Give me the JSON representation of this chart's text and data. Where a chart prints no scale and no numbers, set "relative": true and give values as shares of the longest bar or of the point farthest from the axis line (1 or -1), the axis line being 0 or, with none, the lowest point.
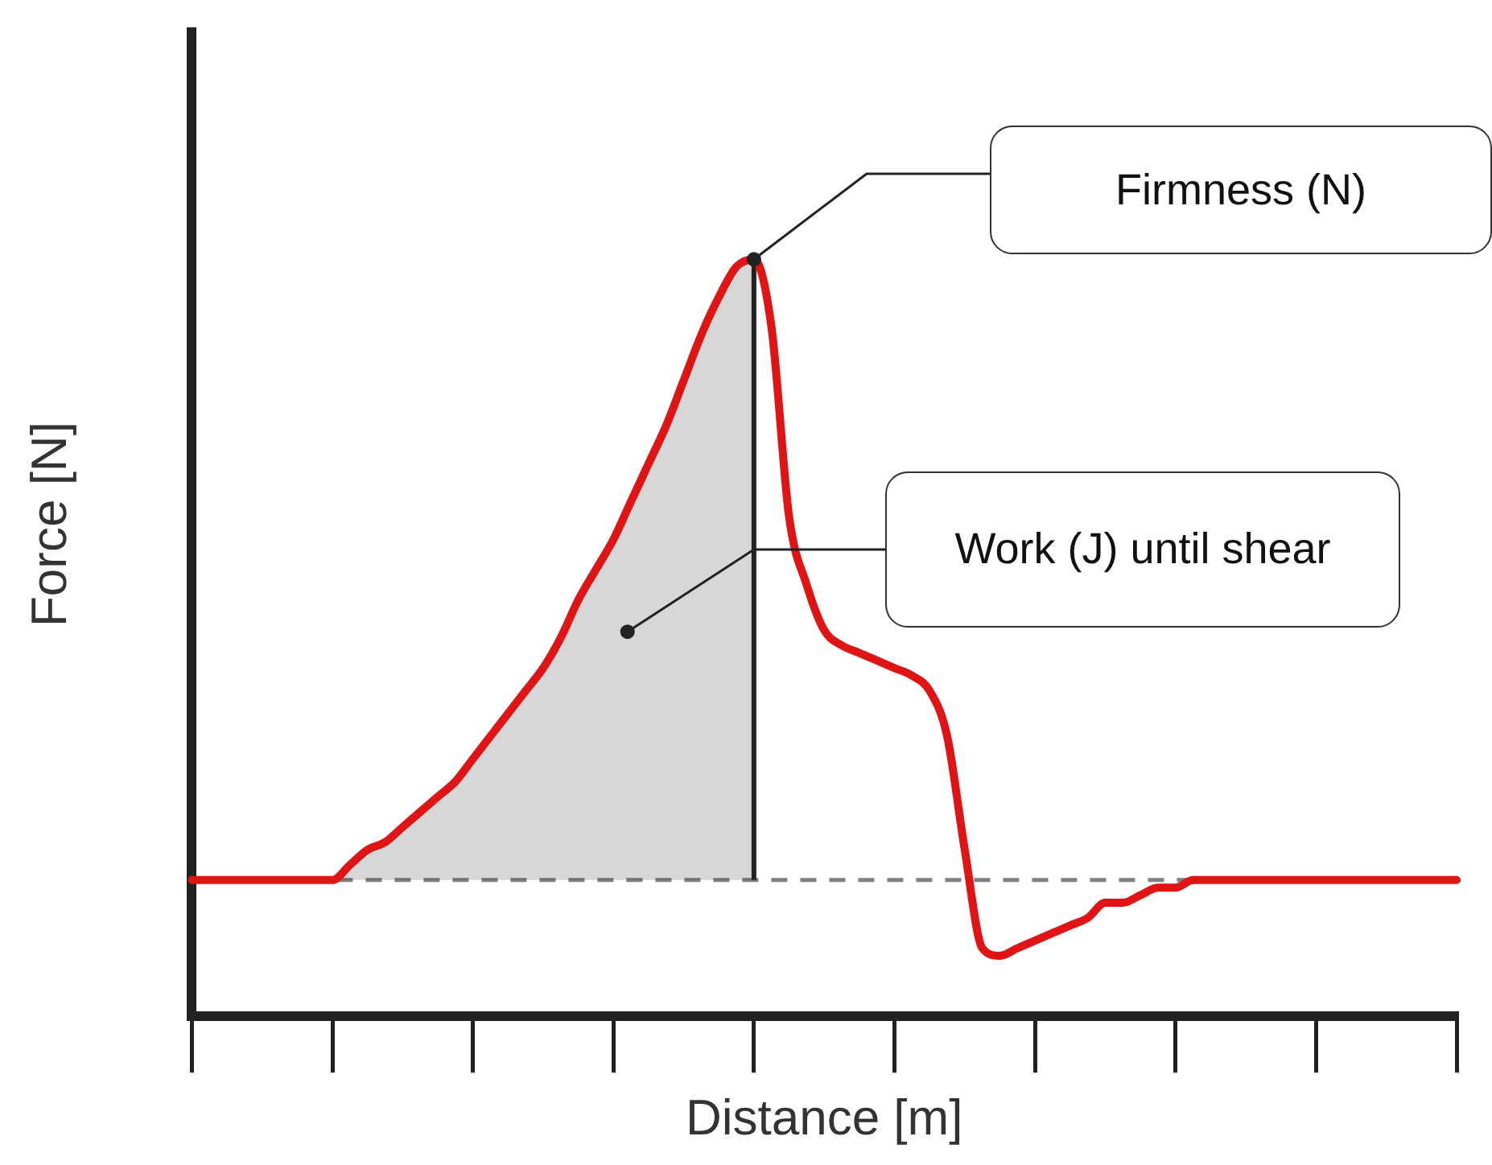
{
  "chart_data": {
    "type": "line",
    "relative": true,
    "xlabel": "Distance [m]",
    "ylabel": "Force [N]",
    "categories": [
      null,
      null,
      null,
      null,
      null,
      null,
      null,
      null,
      null,
      null,
      null,
      null,
      null,
      null,
      null,
      null,
      null,
      null,
      null,
      null,
      null,
      null,
      null,
      null,
      null,
      null,
      null,
      null,
      null,
      null,
      null,
      null,
      null,
      null,
      null,
      null,
      null,
      null,
      null,
      null,
      null,
      null,
      null,
      null,
      null,
      null,
      null,
      null,
      null,
      null,
      null,
      null,
      null,
      null,
      null,
      null,
      null,
      null,
      null,
      null,
      null,
      null,
      null,
      null,
      null,
      null,
      null,
      null,
      null,
      null,
      null,
      null,
      null
    ],
    "series": [
      {
        "type": "line",
        "color": "#e01414",
        "values": [
          0.18,
          0.18,
          0.18,
          0.18,
          0.18,
          0.18,
          0.18,
          0.18,
          0.18,
          0.2,
          0.22,
          0.23,
          0.25,
          0.27,
          0.29,
          0.31,
          0.34,
          0.37,
          0.4,
          0.43,
          0.46,
          0.5,
          0.55,
          0.59,
          0.63,
          0.68,
          0.73,
          0.78,
          0.84,
          0.9,
          0.95,
          0.99,
          1,
          0.91,
          0.66,
          0.57,
          0.51,
          0.49,
          0.48,
          0.47,
          0.46,
          0.45,
          0.43,
          0.37,
          0.22,
          0.09,
          0.08,
          0.09,
          0.1,
          0.11,
          0.12,
          0.13,
          0.15,
          0.15,
          0.16,
          0.17,
          0.17,
          0.18,
          0.18,
          0.18,
          0.18,
          0.18,
          0.18,
          0.18,
          0.18,
          0.18,
          0.18,
          0.18,
          0.18,
          0.18,
          0.18,
          0.18,
          0.18
        ]
      },
      {
        "type": "area",
        "color": "#222222",
        "values": [
          null,
          null,
          null,
          null,
          null,
          null,
          null,
          null,
          0.18,
          0.2,
          0.22,
          0.23,
          0.25,
          0.27,
          0.29,
          0.31,
          0.34,
          0.37,
          0.4,
          0.43,
          0.46,
          0.5,
          0.55,
          0.59,
          0.63,
          0.68,
          0.73,
          0.78,
          0.84,
          0.9,
          0.95,
          0.99,
          1,
          null,
          null,
          null,
          null,
          null,
          null,
          null,
          null,
          null,
          null,
          null,
          null,
          null,
          null,
          null,
          null,
          null,
          null,
          null,
          null,
          null,
          null,
          null,
          null,
          null,
          null,
          null,
          null,
          null,
          null,
          null,
          null,
          null,
          null,
          null,
          null,
          null,
          null,
          null,
          null
        ]
      }
    ],
    "ref_lines": [
      {
        "axis": "y",
        "value": 0.18,
        "color": "#808080",
        "line_style": "dashed"
      }
    ],
    "annotations": [
      "Firmness (N)",
      "Work (J) until shear"
    ],
    "grid": false,
    "legend": false,
    "marker": "none"
  }
}
